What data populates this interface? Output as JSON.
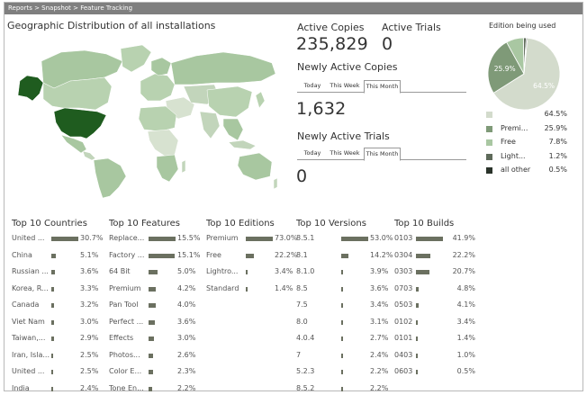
{
  "breadcrumb": "Reports > Snapshot > Feature Tracking",
  "map": {
    "title": "Geographic Distribution of all installations"
  },
  "active_copies": {
    "label": "Active Copies",
    "value": "235,829"
  },
  "active_trials": {
    "label": "Active Trials",
    "value": "0"
  },
  "newly_active_copies": {
    "label": "Newly Active Copies",
    "tabs": [
      "Today",
      "This Week",
      "This Month"
    ],
    "selected_tab": "This Month",
    "value": "1,632"
  },
  "newly_active_trials": {
    "label": "Newly Active Trials",
    "tabs": [
      "Today",
      "This Week",
      "This Month"
    ],
    "selected_tab": "This Month",
    "value": "0"
  },
  "colors": {
    "bar": "#6b7060",
    "map_dark": "#1f5c1f",
    "map_mid": "#a8c7a0",
    "map_light": "#d7e2d0"
  },
  "chart_data": {
    "type": "pie",
    "title": "Edition being used",
    "slices": [
      {
        "name": "",
        "value": 64.5,
        "label": "64.5%",
        "color": "#d3dbcc"
      },
      {
        "name": "Premi...",
        "value": 25.9,
        "label": "25.9%",
        "color": "#7f9a78"
      },
      {
        "name": "Free",
        "value": 7.8,
        "label": "7.8%",
        "color": "#a9c7a2"
      },
      {
        "name": "Light...",
        "value": 1.2,
        "label": "1.2%",
        "color": "#5e6a5a"
      },
      {
        "name": "all other",
        "value": 0.5,
        "label": "0.5%",
        "color": "#2a332a"
      }
    ]
  },
  "top_lists": [
    {
      "title": "Top 10 Countries",
      "items": [
        {
          "name": "United ...",
          "value": 30.7,
          "label": "30.7%"
        },
        {
          "name": "China",
          "value": 5.1,
          "label": "5.1%"
        },
        {
          "name": "Russian ...",
          "value": 3.6,
          "label": "3.6%"
        },
        {
          "name": "Korea, R...",
          "value": 3.3,
          "label": "3.3%"
        },
        {
          "name": "Canada",
          "value": 3.2,
          "label": "3.2%"
        },
        {
          "name": "Viet Nam",
          "value": 3.0,
          "label": "3.0%"
        },
        {
          "name": "Taiwan,...",
          "value": 2.9,
          "label": "2.9%"
        },
        {
          "name": "Iran, Isla...",
          "value": 2.5,
          "label": "2.5%"
        },
        {
          "name": "United ...",
          "value": 2.5,
          "label": "2.5%"
        },
        {
          "name": "India",
          "value": 2.4,
          "label": "2.4%"
        }
      ]
    },
    {
      "title": "Top 10 Features",
      "items": [
        {
          "name": "Replace...",
          "value": 15.5,
          "label": "15.5%"
        },
        {
          "name": "Factory ...",
          "value": 15.1,
          "label": "15.1%"
        },
        {
          "name": "64 Bit",
          "value": 5.0,
          "label": "5.0%"
        },
        {
          "name": "Premium",
          "value": 4.2,
          "label": "4.2%"
        },
        {
          "name": "Pan Tool",
          "value": 4.0,
          "label": "4.0%"
        },
        {
          "name": "Perfect ...",
          "value": 3.6,
          "label": "3.6%"
        },
        {
          "name": "Effects",
          "value": 3.0,
          "label": "3.0%"
        },
        {
          "name": "Photos...",
          "value": 2.6,
          "label": "2.6%"
        },
        {
          "name": "Color E...",
          "value": 2.3,
          "label": "2.3%"
        },
        {
          "name": "Tone En...",
          "value": 2.2,
          "label": "2.2%"
        }
      ]
    },
    {
      "title": "Top 10 Editions",
      "items": [
        {
          "name": "Premium",
          "value": 73.0,
          "label": "73.0%"
        },
        {
          "name": "Free",
          "value": 22.2,
          "label": "22.2%"
        },
        {
          "name": "Lightro...",
          "value": 3.4,
          "label": "3.4%"
        },
        {
          "name": "Standard",
          "value": 1.4,
          "label": "1.4%"
        }
      ]
    },
    {
      "title": "Top 10 Versions",
      "items": [
        {
          "name": "8.5.1",
          "value": 53.0,
          "label": "53.0%"
        },
        {
          "name": "8.1",
          "value": 14.2,
          "label": "14.2%"
        },
        {
          "name": "8.1.0",
          "value": 3.9,
          "label": "3.9%"
        },
        {
          "name": "8.5",
          "value": 3.6,
          "label": "3.6%"
        },
        {
          "name": "7.5",
          "value": 3.4,
          "label": "3.4%"
        },
        {
          "name": "8.0",
          "value": 3.1,
          "label": "3.1%"
        },
        {
          "name": "4.0.4",
          "value": 2.7,
          "label": "2.7%"
        },
        {
          "name": "7",
          "value": 2.4,
          "label": "2.4%"
        },
        {
          "name": "5.2.3",
          "value": 2.2,
          "label": "2.2%"
        },
        {
          "name": "8.5.2",
          "value": 2.2,
          "label": "2.2%"
        }
      ]
    },
    {
      "title": "Top 10 Builds",
      "items": [
        {
          "name": "0103",
          "value": 41.9,
          "label": "41.9%"
        },
        {
          "name": "0304",
          "value": 22.2,
          "label": "22.2%"
        },
        {
          "name": "0303",
          "value": 20.7,
          "label": "20.7%"
        },
        {
          "name": "0703",
          "value": 4.8,
          "label": "4.8%"
        },
        {
          "name": "0503",
          "value": 4.1,
          "label": "4.1%"
        },
        {
          "name": "0102",
          "value": 3.4,
          "label": "3.4%"
        },
        {
          "name": "0101",
          "value": 1.4,
          "label": "1.4%"
        },
        {
          "name": "0403",
          "value": 1.0,
          "label": "1.0%"
        },
        {
          "name": "0603",
          "value": 0.5,
          "label": "0.5%"
        }
      ]
    }
  ]
}
